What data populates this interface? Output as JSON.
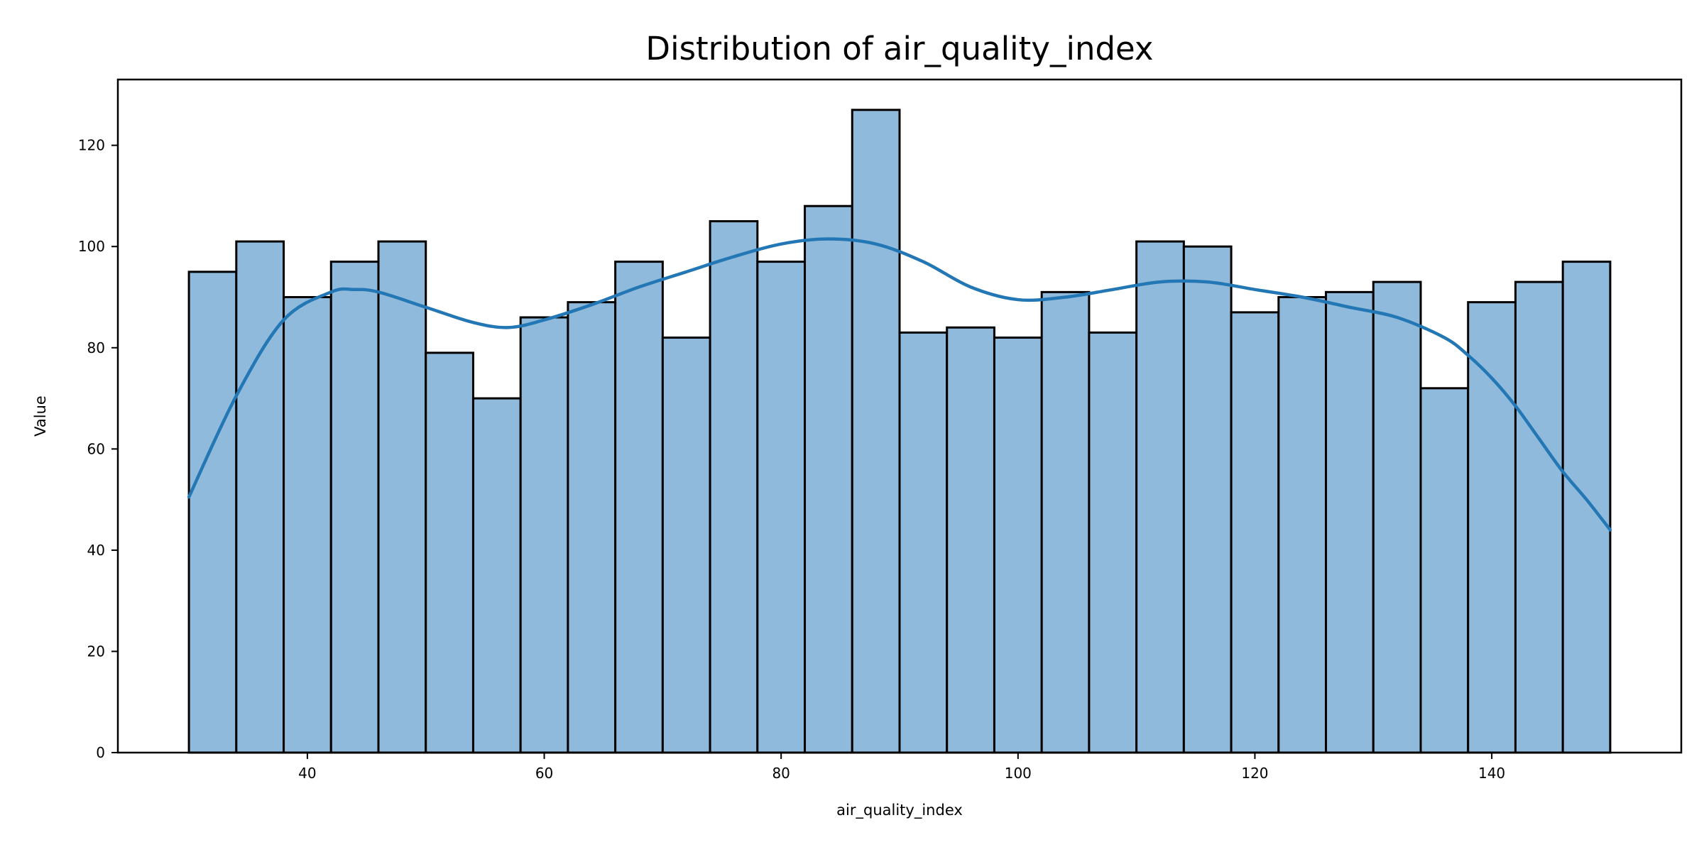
{
  "chart_data": {
    "type": "bar",
    "title": "Distribution of air_quality_index",
    "xlabel": "air_quality_index",
    "ylabel": "Value",
    "bin_start": 30,
    "bin_width": 4,
    "values": [
      95,
      101,
      90,
      97,
      101,
      79,
      70,
      86,
      89,
      97,
      82,
      105,
      97,
      108,
      127,
      83,
      84,
      82,
      91,
      83,
      101,
      100,
      87,
      90,
      91,
      93,
      72,
      89,
      93,
      97
    ],
    "xlim": [
      24,
      156
    ],
    "ylim": [
      0,
      133
    ],
    "xticks": [
      40,
      60,
      80,
      100,
      120,
      140
    ],
    "yticks": [
      0,
      20,
      40,
      60,
      80,
      100,
      120
    ],
    "kde": {
      "x": [
        30,
        34,
        38,
        42,
        44,
        46,
        50,
        54,
        57,
        60,
        64,
        68,
        72,
        76,
        80,
        84,
        88,
        92,
        96,
        100,
        104,
        108,
        112,
        116,
        120,
        124,
        128,
        132,
        136,
        138,
        140,
        142,
        144,
        146,
        148,
        150
      ],
      "y": [
        50.5,
        70.5,
        85.5,
        91,
        91.5,
        91,
        88,
        85,
        84,
        85.5,
        88.5,
        92,
        95,
        98,
        100.5,
        101.5,
        100.5,
        97,
        92,
        89.5,
        90,
        91.5,
        93,
        93,
        91.5,
        90,
        88,
        86,
        82,
        78.5,
        74,
        68.5,
        62,
        55.5,
        50,
        44
      ]
    },
    "colors": {
      "bar_fill": "#8fbadb",
      "bar_edge": "#000000",
      "kde_line": "#2277b4"
    },
    "grid": false,
    "legend": "none"
  }
}
